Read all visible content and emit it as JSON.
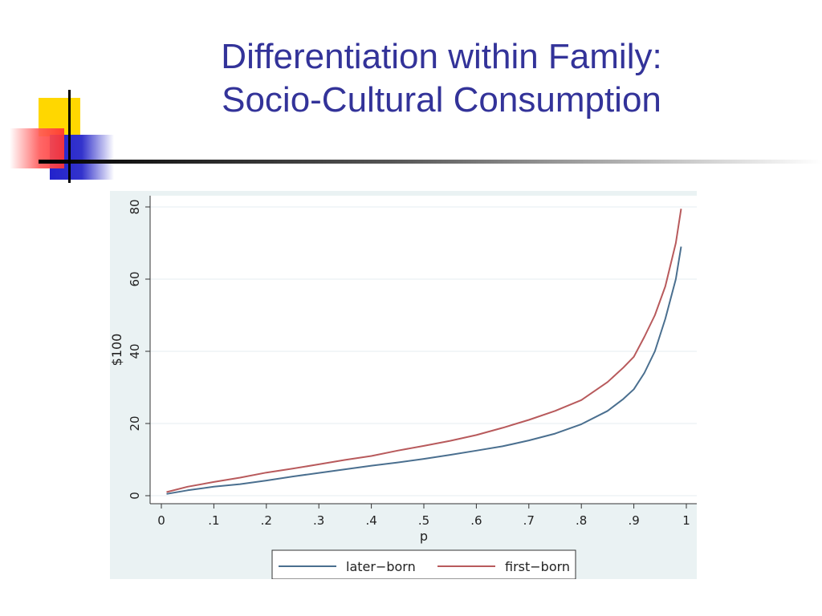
{
  "slide": {
    "title_line1": "Differentiation within Family:",
    "title_line2": "Socio-Cultural Consumption"
  },
  "colors": {
    "title": "#333399",
    "later_born": "#4a6f8f",
    "first_born": "#b85a5c",
    "panel_bg": "#eaf2f3",
    "plot_bg": "#ffffff",
    "deco_yellow": "#ffd700",
    "deco_red": "#ff5a5a",
    "deco_blue": "#3333cc"
  },
  "chart_data": {
    "type": "line",
    "title": "",
    "xlabel": "p",
    "ylabel": "$100",
    "xlim": [
      0,
      1
    ],
    "ylim": [
      0,
      80
    ],
    "x_ticks": [
      0,
      0.1,
      0.2,
      0.3,
      0.4,
      0.5,
      0.6,
      0.7,
      0.8,
      0.9,
      1
    ],
    "x_tick_labels": [
      "0",
      ".1",
      ".2",
      ".3",
      ".4",
      ".5",
      ".6",
      ".7",
      ".8",
      ".9",
      "1"
    ],
    "y_ticks": [
      0,
      20,
      40,
      60,
      80
    ],
    "y_tick_labels": [
      "0",
      "20",
      "40",
      "60",
      "80"
    ],
    "grid": true,
    "legend": "bottom",
    "x": [
      0.01,
      0.05,
      0.1,
      0.15,
      0.2,
      0.25,
      0.3,
      0.35,
      0.4,
      0.45,
      0.5,
      0.55,
      0.6,
      0.65,
      0.7,
      0.75,
      0.8,
      0.85,
      0.88,
      0.9,
      0.92,
      0.94,
      0.96,
      0.98,
      0.99
    ],
    "series": [
      {
        "name": "later−born",
        "values": [
          0.5,
          1.5,
          2.5,
          3.2,
          4.2,
          5.3,
          6.3,
          7.3,
          8.3,
          9.2,
          10.2,
          11.3,
          12.5,
          13.7,
          15.3,
          17.2,
          19.8,
          23.5,
          26.8,
          29.5,
          34.0,
          40.0,
          49.0,
          60.0,
          69.0
        ]
      },
      {
        "name": "first−born",
        "values": [
          1.0,
          2.5,
          3.8,
          5.0,
          6.4,
          7.5,
          8.7,
          9.9,
          11.0,
          12.5,
          13.8,
          15.2,
          16.8,
          18.8,
          21.0,
          23.5,
          26.5,
          31.5,
          35.5,
          38.5,
          44.0,
          50.0,
          58.0,
          70.0,
          79.5
        ]
      }
    ]
  }
}
